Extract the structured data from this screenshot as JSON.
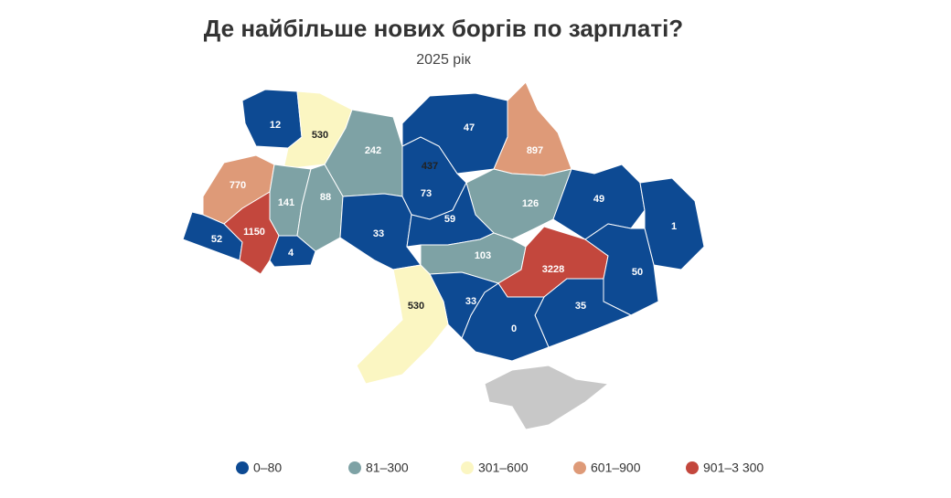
{
  "title": "Де найбільше нових боргів по зарплаті?",
  "subtitle": "2025 рік",
  "values": [
    12,
    530,
    242,
    437,
    47,
    897,
    73,
    126,
    49,
    1,
    770,
    141,
    88,
    52,
    1150,
    4,
    33,
    59,
    103,
    3228,
    50,
    35,
    0,
    33,
    530
  ],
  "legend": [
    {
      "label": "0–80",
      "min": 0,
      "max": 80,
      "color": "#0d4a93"
    },
    {
      "label": "81–300",
      "min": 81,
      "max": 300,
      "color": "#7ea2a5"
    },
    {
      "label": "301–600",
      "min": 301,
      "max": 600,
      "color": "#fbf6c2"
    },
    {
      "label": "601–900",
      "min": 601,
      "max": 900,
      "color": "#de9a78"
    },
    {
      "label": "901–3 300",
      "min": 901,
      "max": 3300,
      "color": "#c3473d"
    }
  ]
}
